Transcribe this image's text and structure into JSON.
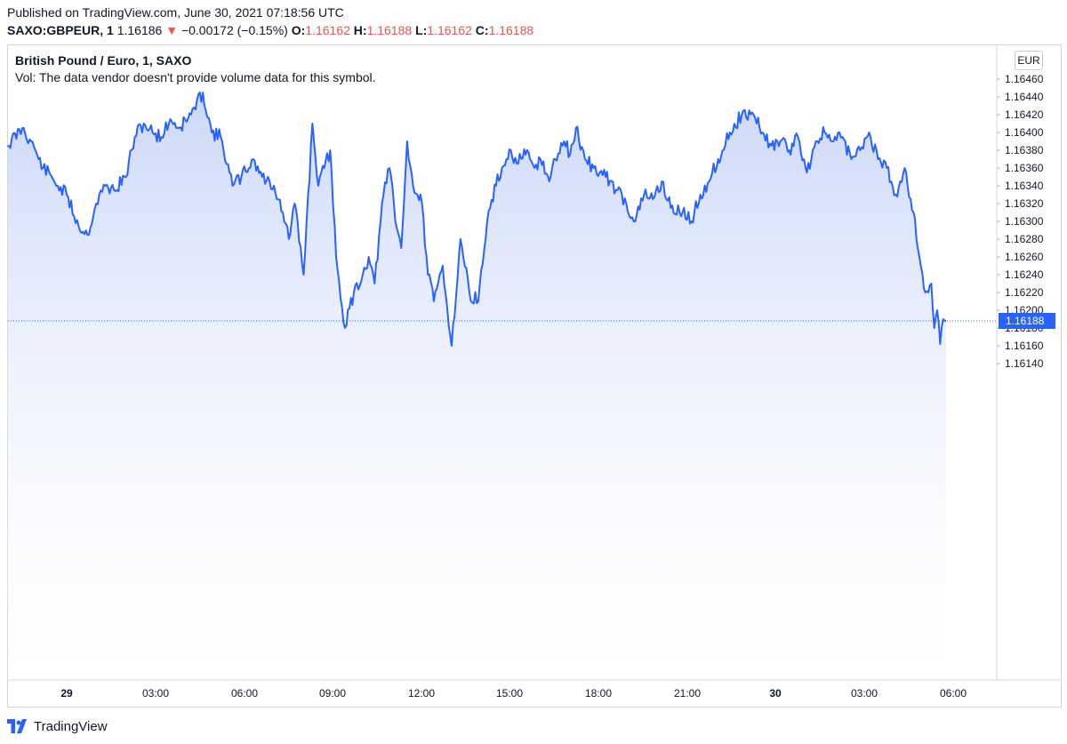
{
  "header": {
    "published": "Published on TradingView.com, June 30, 2021 07:18:56 UTC",
    "symbol": "SAXO:GBPEUR, 1",
    "last": "1.16186",
    "change_arrow": "▼",
    "change": "−0.00172 (−0.15%)",
    "o_label": "O:",
    "o_value": "1.16162",
    "h_label": "H:",
    "h_value": "1.16188",
    "l_label": "L:",
    "l_value": "1.16162",
    "c_label": "C:",
    "c_value": "1.16188"
  },
  "legend": {
    "title": "British Pound / Euro, 1, SAXO",
    "volume_note": "Vol: The data vendor doesn't provide volume data for this symbol."
  },
  "currency_button": "EUR",
  "footer": {
    "brand": "TradingView",
    "icon": "tradingview-logo-icon"
  },
  "colors": {
    "line": "#2962ff",
    "fill_top": "#c9d6f8",
    "price_label_bg": "#2962ff",
    "down": "#ef5350"
  },
  "chart_data": {
    "type": "area",
    "title": "British Pound / Euro, 1, SAXO",
    "ylim": [
      1.1612,
      1.1647
    ],
    "yticks": [
      "1.16460",
      "1.16440",
      "1.16420",
      "1.16400",
      "1.16380",
      "1.16360",
      "1.16340",
      "1.16320",
      "1.16300",
      "1.16280",
      "1.16260",
      "1.16240",
      "1.16220",
      "1.16200",
      "1.16180",
      "1.16160",
      "1.16140"
    ],
    "xticks": [
      "29",
      "03:00",
      "06:00",
      "09:00",
      "12:00",
      "15:00",
      "18:00",
      "21:00",
      "30",
      "03:00",
      "06:00"
    ],
    "xticks_bold": [
      "29",
      "30"
    ],
    "current_price": "1.16188",
    "x": [
      -2.0,
      -1.5,
      -1.2,
      -1.0,
      -0.8,
      -0.5,
      -0.3,
      0.0,
      0.4,
      0.7,
      1.0,
      1.3,
      1.6,
      2.0,
      2.3,
      2.6,
      2.9,
      3.2,
      3.5,
      3.8,
      4.2,
      4.6,
      4.9,
      5.2,
      5.5,
      5.6,
      5.9,
      6.3,
      6.6,
      7.0,
      7.3,
      7.5,
      7.7,
      8.0,
      8.3,
      8.5,
      8.7,
      8.9,
      9.1,
      9.4,
      9.7,
      10.0,
      10.2,
      10.4,
      10.7,
      10.9,
      11.0,
      11.1,
      11.3,
      11.5,
      11.7,
      12.0,
      12.2,
      12.4,
      12.7,
      13.0,
      13.3,
      13.6,
      13.9,
      14.2,
      14.5,
      14.7,
      14.9,
      15.0,
      15.2,
      15.5,
      15.8,
      16.0,
      16.3,
      16.5,
      16.8,
      17.0,
      17.2,
      17.5,
      17.8,
      18.2,
      18.6,
      18.9,
      19.2,
      19.5,
      19.8,
      20.1,
      20.4,
      20.8,
      21.1,
      21.4,
      21.7,
      22.0,
      22.4,
      22.8,
      23.2,
      23.5,
      23.8,
      24.1,
      24.4,
      24.7,
      25.0,
      25.3,
      25.6,
      25.9,
      26.2,
      26.5,
      26.8,
      27.1,
      27.4,
      27.7,
      28.0,
      28.3,
      28.6,
      28.8,
      29.0,
      29.2,
      29.3,
      29.4,
      29.5,
      29.6,
      29.7
    ],
    "y": [
      1.16385,
      1.16405,
      1.1639,
      1.16375,
      1.1636,
      1.1635,
      1.1634,
      1.1633,
      1.16295,
      1.16285,
      1.1632,
      1.1634,
      1.16335,
      1.1635,
      1.16395,
      1.1641,
      1.164,
      1.16395,
      1.16415,
      1.16405,
      1.1642,
      1.16445,
      1.164,
      1.16395,
      1.16355,
      1.1634,
      1.1635,
      1.1637,
      1.1635,
      1.1634,
      1.1631,
      1.1628,
      1.1632,
      1.1624,
      1.1641,
      1.1634,
      1.1636,
      1.1638,
      1.1626,
      1.1618,
      1.1622,
      1.1624,
      1.1626,
      1.1623,
      1.1633,
      1.1636,
      1.1634,
      1.163,
      1.1627,
      1.1639,
      1.1634,
      1.1632,
      1.1624,
      1.1621,
      1.1625,
      1.1616,
      1.1628,
      1.1622,
      1.1621,
      1.163,
      1.1634,
      1.1636,
      1.1637,
      1.1638,
      1.16365,
      1.16375,
      1.1636,
      1.1637,
      1.16345,
      1.1637,
      1.1639,
      1.16375,
      1.16405,
      1.1637,
      1.1636,
      1.1635,
      1.16335,
      1.1632,
      1.163,
      1.1633,
      1.16325,
      1.16345,
      1.16315,
      1.1631,
      1.163,
      1.1633,
      1.16345,
      1.1637,
      1.164,
      1.1642,
      1.1642,
      1.164,
      1.16385,
      1.1639,
      1.1638,
      1.16395,
      1.16355,
      1.1639,
      1.164,
      1.1639,
      1.16395,
      1.1637,
      1.1638,
      1.164,
      1.1637,
      1.1636,
      1.1633,
      1.1636,
      1.1631,
      1.1626,
      1.1622,
      1.1623,
      1.1618,
      1.162,
      1.16162,
      1.1619,
      1.16188
    ]
  }
}
